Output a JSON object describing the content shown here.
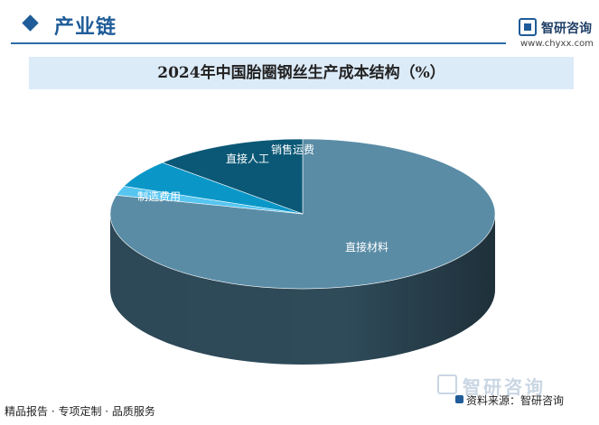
{
  "header": {
    "section_title": "产业链",
    "brand_name": "智研咨询",
    "brand_url": "www.chyxx.com"
  },
  "chart_data": {
    "type": "pie",
    "title": "2024年中国胎圈钢丝生产成本结构（%）",
    "categories": [
      "直接材料",
      "制造费用",
      "直接人工",
      "销售运费"
    ],
    "values": [
      79,
      13,
      6,
      2
    ],
    "colors": [
      "#5a8ca6",
      "#0b5876",
      "#0a97c8",
      "#56c5f0"
    ],
    "side_colors": [
      "#2f4b5a",
      "#073d52",
      "#066b8f",
      "#3c9cc2"
    ],
    "style": "3d",
    "data_labels_show_values": false
  },
  "footer": {
    "left_text": "精品报告 · 专项定制 · 品质服务",
    "source_text": "资料来源：智研咨询",
    "watermark_text": "智研咨询"
  }
}
